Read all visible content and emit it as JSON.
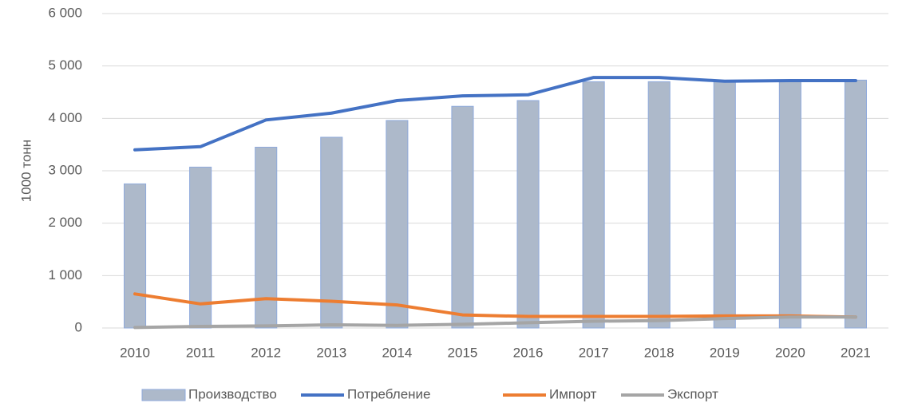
{
  "chart_data": {
    "type": "combo",
    "y_label": "1000 тонн",
    "categories": [
      "2010",
      "2011",
      "2012",
      "2013",
      "2014",
      "2015",
      "2016",
      "2017",
      "2018",
      "2019",
      "2020",
      "2021"
    ],
    "series": [
      {
        "name": "Производство",
        "type": "bar",
        "color": "#adb9ca",
        "values": [
          2750,
          3070,
          3450,
          3640,
          3960,
          4230,
          4340,
          4700,
          4700,
          4700,
          4720,
          4730
        ]
      },
      {
        "name": "Потребление",
        "type": "line",
        "color": "#4472c4",
        "values": [
          3400,
          3460,
          3970,
          4100,
          4340,
          4430,
          4450,
          4780,
          4780,
          4710,
          4720,
          4720
        ]
      },
      {
        "name": "Импорт",
        "type": "line",
        "color": "#ed7d31",
        "values": [
          650,
          460,
          560,
          510,
          440,
          250,
          220,
          220,
          220,
          230,
          230,
          210
        ]
      },
      {
        "name": "Экспорт",
        "type": "line",
        "color": "#a5a5a5",
        "values": [
          10,
          30,
          40,
          60,
          50,
          70,
          100,
          130,
          140,
          180,
          210,
          210
        ]
      }
    ],
    "ylim": [
      0,
      6000
    ],
    "yticks": [
      0,
      {
        "value": 1000,
        "label": "1 000"
      },
      {
        "value": 2000,
        "label": "2 000"
      },
      {
        "value": 3000,
        "label": "3 000"
      },
      {
        "value": 4000,
        "label": "4 000"
      },
      {
        "value": 5000,
        "label": "5 000"
      },
      {
        "value": 6000,
        "label": "6 000"
      }
    ],
    "grid": true,
    "legend": "bottom"
  }
}
